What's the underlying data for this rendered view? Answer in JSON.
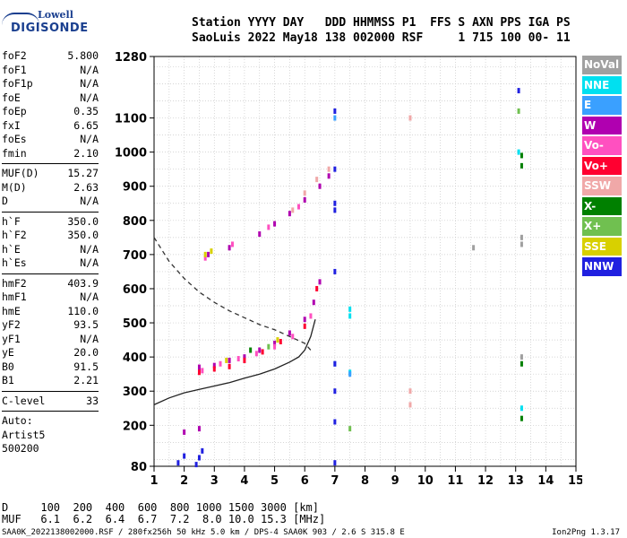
{
  "logo": {
    "line1": "Lowell",
    "line2": "DIGISONDE"
  },
  "header": {
    "line1": "Station YYYY DAY   DDD HHMMSS P1  FFS S AXN PPS IGA PS",
    "line2": "SaoLuis 2022 May18 138 002000 RSF     1 715 100 00- 11"
  },
  "params": [
    {
      "k": "foF2",
      "v": "5.800"
    },
    {
      "k": "foF1",
      "v": "N/A"
    },
    {
      "k": "foF1p",
      "v": "N/A"
    },
    {
      "k": "foE",
      "v": "N/A"
    },
    {
      "k": "foEp",
      "v": "0.35"
    },
    {
      "k": "fxI",
      "v": "6.65"
    },
    {
      "k": "foEs",
      "v": "N/A"
    },
    {
      "k": "fmin",
      "v": "2.10"
    },
    {
      "sep": true
    },
    {
      "k": "MUF(D)",
      "v": "15.27"
    },
    {
      "k": "M(D)",
      "v": "2.63"
    },
    {
      "k": "D",
      "v": "N/A"
    },
    {
      "sep": true
    },
    {
      "k": "h`F",
      "v": "350.0"
    },
    {
      "k": "h`F2",
      "v": "350.0"
    },
    {
      "k": "h`E",
      "v": "N/A"
    },
    {
      "k": "h`Es",
      "v": "N/A"
    },
    {
      "sep": true
    },
    {
      "k": "hmF2",
      "v": "403.9"
    },
    {
      "k": "hmF1",
      "v": "N/A"
    },
    {
      "k": "hmE",
      "v": "110.0"
    },
    {
      "k": "yF2",
      "v": "93.5"
    },
    {
      "k": "yF1",
      "v": "N/A"
    },
    {
      "k": "yE",
      "v": "20.0"
    },
    {
      "k": "B0",
      "v": "91.5"
    },
    {
      "k": "B1",
      "v": "2.21"
    },
    {
      "sep": true
    },
    {
      "k": "C-level",
      "v": "33"
    },
    {
      "sep": true
    },
    {
      "k": "Auto:",
      "v": ""
    },
    {
      "k": "Artist5",
      "v": ""
    },
    {
      "k": "500200",
      "v": ""
    }
  ],
  "legend": [
    {
      "label": "NoVal",
      "color": "#a0a0a0"
    },
    {
      "label": "NNE",
      "color": "#00e0f0"
    },
    {
      "label": "E",
      "color": "#3aa0ff"
    },
    {
      "label": "W",
      "color": "#b000b0"
    },
    {
      "label": "Vo-",
      "color": "#ff50c0"
    },
    {
      "label": "Vo+",
      "color": "#ff0030"
    },
    {
      "label": "SSW",
      "color": "#f0a8a8"
    },
    {
      "label": "X-",
      "color": "#008000"
    },
    {
      "label": "X+",
      "color": "#70c050"
    },
    {
      "label": "SSE",
      "color": "#d8d000"
    },
    {
      "label": "NNW",
      "color": "#2020e0"
    }
  ],
  "muf_table": {
    "d_line": "D     100  200  400  600  800 1000 1500 3000 [km]",
    "muf_line": "MUF   6.1  6.2  6.4  6.7  7.2  8.0 10.0 15.3 [MHz]"
  },
  "footer": "SAA0K_2022138002000.RSF / 280fx256h 50 kHz 5.0 km / DPS-4 SAA0K 903 / 2.6 S 315.8 E",
  "version": "Ion2Png 1.3.17",
  "chart_data": {
    "type": "scatter",
    "x_ticks": [
      1,
      2,
      3,
      4,
      5,
      6,
      7,
      8,
      9,
      10,
      11,
      12,
      13,
      14,
      15
    ],
    "y_ticks": [
      80,
      200,
      300,
      400,
      500,
      600,
      700,
      800,
      900,
      1000,
      1100,
      1280
    ],
    "xlim": [
      1,
      15
    ],
    "ylim": [
      80,
      1280
    ],
    "grid": true,
    "series": [
      {
        "name": "W",
        "color": "#b000b0",
        "points": [
          [
            2.5,
            370
          ],
          [
            3.0,
            375
          ],
          [
            3.5,
            390
          ],
          [
            4.0,
            400
          ],
          [
            4.5,
            420
          ],
          [
            5.0,
            440
          ],
          [
            5.5,
            470
          ],
          [
            6.0,
            510
          ],
          [
            6.3,
            560
          ],
          [
            6.5,
            620
          ],
          [
            2.8,
            700
          ],
          [
            3.5,
            720
          ],
          [
            4.5,
            760
          ],
          [
            5.0,
            790
          ],
          [
            5.5,
            820
          ],
          [
            6.0,
            860
          ],
          [
            6.5,
            900
          ],
          [
            6.8,
            930
          ],
          [
            2.0,
            180
          ],
          [
            2.5,
            190
          ]
        ]
      },
      {
        "name": "Vo-",
        "color": "#ff50c0",
        "points": [
          [
            2.6,
            360
          ],
          [
            3.2,
            380
          ],
          [
            3.8,
            395
          ],
          [
            4.4,
            410
          ],
          [
            5.0,
            430
          ],
          [
            5.6,
            460
          ],
          [
            6.2,
            520
          ],
          [
            2.7,
            690
          ],
          [
            3.6,
            730
          ],
          [
            4.8,
            780
          ],
          [
            5.8,
            840
          ]
        ]
      },
      {
        "name": "Vo+",
        "color": "#ff0030",
        "points": [
          [
            2.5,
            355
          ],
          [
            3.0,
            365
          ],
          [
            3.5,
            372
          ],
          [
            4.0,
            390
          ],
          [
            4.6,
            415
          ],
          [
            5.2,
            445
          ],
          [
            6.0,
            490
          ],
          [
            6.4,
            600
          ]
        ]
      },
      {
        "name": "SSW",
        "color": "#f0a8a8",
        "points": [
          [
            5.6,
            830
          ],
          [
            6.0,
            880
          ],
          [
            6.4,
            920
          ],
          [
            6.8,
            950
          ],
          [
            9.5,
            1100
          ],
          [
            9.5,
            300
          ],
          [
            9.5,
            260
          ]
        ]
      },
      {
        "name": "X-",
        "color": "#008000",
        "points": [
          [
            13.2,
            960
          ],
          [
            13.2,
            990
          ],
          [
            13.2,
            380
          ],
          [
            13.2,
            220
          ],
          [
            4.2,
            420
          ]
        ]
      },
      {
        "name": "X+",
        "color": "#70c050",
        "points": [
          [
            7.5,
            190
          ],
          [
            13.1,
            1120
          ],
          [
            4.8,
            430
          ]
        ]
      },
      {
        "name": "SSE",
        "color": "#d8d000",
        "points": [
          [
            2.7,
            700
          ],
          [
            2.9,
            710
          ],
          [
            3.4,
            390
          ],
          [
            5.1,
            450
          ]
        ]
      },
      {
        "name": "NNE",
        "color": "#00e0f0",
        "points": [
          [
            7.5,
            520
          ],
          [
            7.5,
            540
          ],
          [
            7.5,
            355
          ],
          [
            13.1,
            1000
          ],
          [
            13.2,
            250
          ]
        ]
      },
      {
        "name": "E",
        "color": "#3aa0ff",
        "points": [
          [
            7.0,
            1100
          ],
          [
            7.0,
            380
          ],
          [
            7.5,
            350
          ]
        ]
      },
      {
        "name": "NNW",
        "color": "#2020e0",
        "points": [
          [
            7.0,
            1120
          ],
          [
            7.0,
            950
          ],
          [
            7.0,
            850
          ],
          [
            7.0,
            830
          ],
          [
            7.0,
            650
          ],
          [
            7.0,
            380
          ],
          [
            7.0,
            300
          ],
          [
            7.0,
            210
          ],
          [
            7.0,
            90
          ],
          [
            2.0,
            110
          ],
          [
            2.5,
            105
          ],
          [
            2.6,
            125
          ],
          [
            1.8,
            90
          ],
          [
            2.4,
            85
          ],
          [
            13.1,
            1180
          ]
        ]
      },
      {
        "name": "NoVal",
        "color": "#a0a0a0",
        "points": [
          [
            13.2,
            750
          ],
          [
            13.2,
            730
          ],
          [
            11.6,
            720
          ],
          [
            13.2,
            400
          ]
        ]
      }
    ],
    "dashed_curve": [
      [
        1.0,
        750
      ],
      [
        1.5,
        680
      ],
      [
        2.0,
        630
      ],
      [
        2.5,
        590
      ],
      [
        3.0,
        560
      ],
      [
        3.5,
        535
      ],
      [
        4.0,
        515
      ],
      [
        4.5,
        495
      ],
      [
        5.0,
        480
      ],
      [
        5.5,
        460
      ],
      [
        6.0,
        440
      ],
      [
        6.2,
        420
      ]
    ],
    "solid_curve": [
      [
        1.0,
        260
      ],
      [
        1.5,
        280
      ],
      [
        2.0,
        295
      ],
      [
        2.5,
        305
      ],
      [
        3.0,
        315
      ],
      [
        3.5,
        325
      ],
      [
        4.0,
        338
      ],
      [
        4.5,
        350
      ],
      [
        5.0,
        365
      ],
      [
        5.5,
        385
      ],
      [
        5.8,
        400
      ],
      [
        6.0,
        420
      ],
      [
        6.2,
        460
      ],
      [
        6.35,
        510
      ]
    ]
  }
}
